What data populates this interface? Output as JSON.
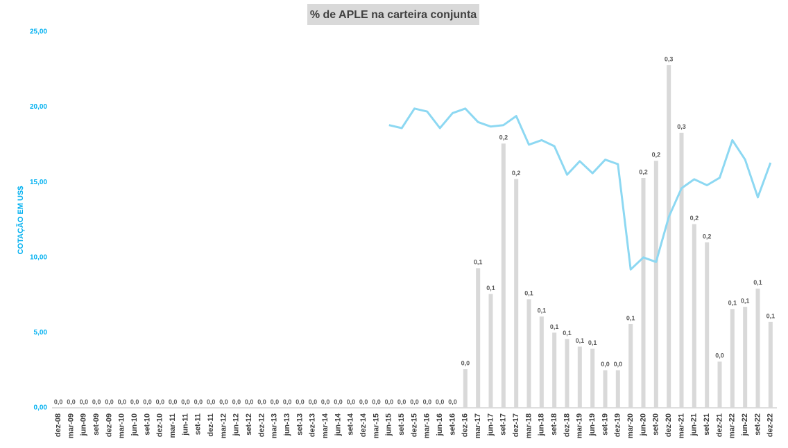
{
  "chart_data": {
    "type": "combo",
    "title": "% de APLE na carteira conjunta",
    "y_axis_label": "COTAÇÃO EM US$",
    "categories": [
      "dez-08",
      "mar-09",
      "jun-09",
      "set-09",
      "dez-09",
      "mar-10",
      "jun-10",
      "set-10",
      "dez-10",
      "mar-11",
      "jun-11",
      "set-11",
      "dez-11",
      "mar-12",
      "jun-12",
      "set-12",
      "dez-12",
      "mar-13",
      "jun-13",
      "set-13",
      "dez-13",
      "mar-14",
      "jun-14",
      "set-14",
      "dez-14",
      "mar-15",
      "jun-15",
      "set-15",
      "dez-15",
      "mar-16",
      "jun-16",
      "set-16",
      "dez-16",
      "mar-17",
      "jun-17",
      "set-17",
      "dez-17",
      "mar-18",
      "jun-18",
      "set-18",
      "dez-18",
      "mar-19",
      "jun-19",
      "set-19",
      "dez-19",
      "mar-20",
      "jun-20",
      "set-20",
      "dez-20",
      "mar-21",
      "jun-21",
      "set-21",
      "dez-21",
      "mar-22",
      "jun-22",
      "set-22",
      "dez-22"
    ],
    "ylim": [
      0,
      25
    ],
    "yticks": [
      {
        "value": 0,
        "label": "0,00"
      },
      {
        "value": 5,
        "label": "5,00"
      },
      {
        "value": 10,
        "label": "10,00"
      },
      {
        "value": 15,
        "label": "15,00"
      },
      {
        "value": 20,
        "label": "20,00"
      },
      {
        "value": 25,
        "label": "25,00"
      }
    ],
    "y2lim": [
      0,
      0.35
    ],
    "grid": false,
    "series": [
      {
        "type": "bar",
        "axis": "y2",
        "color": "#d9d9d9",
        "values": [
          0,
          0,
          0,
          0,
          0,
          0,
          0,
          0,
          0,
          0,
          0,
          0,
          0,
          0,
          0,
          0,
          0,
          0,
          0,
          0,
          0,
          0,
          0,
          0,
          0,
          0,
          0,
          0,
          0,
          0,
          0,
          0,
          0.036,
          0.13,
          0.106,
          0.246,
          0.213,
          0.101,
          0.085,
          0.07,
          0.064,
          0.057,
          0.055,
          0.035,
          0.035,
          0.078,
          0.214,
          0.23,
          0.319,
          0.256,
          0.171,
          0.154,
          0.043,
          0.092,
          0.094,
          0.111,
          0.08
        ],
        "value_labels": [
          "0,0",
          "0,0",
          "0,0",
          "0,0",
          "0,0",
          "0,0",
          "0,0",
          "0,0",
          "0,0",
          "0,0",
          "0,0",
          "0,0",
          "0,0",
          "0,0",
          "0,0",
          "0,0",
          "0,0",
          "0,0",
          "0,0",
          "0,0",
          "0,0",
          "0,0",
          "0,0",
          "0,0",
          "0,0",
          "0,0",
          "0,0",
          "0,0",
          "0,0",
          "0,0",
          "0,0",
          "0,0",
          "0,0",
          "0,1",
          "0,1",
          "0,2",
          "0,2",
          "0,1",
          "0,1",
          "0,1",
          "0,1",
          "0,1",
          "0,1",
          "0,0",
          "0,0",
          "0,1",
          "0,2",
          "0,2",
          "0,3",
          "0,3",
          "0,2",
          "0,2",
          "0,0",
          "0,1",
          "0,1",
          "0,1",
          "0,1"
        ]
      },
      {
        "type": "line",
        "color": "#8dd8f2",
        "values": [
          null,
          null,
          null,
          null,
          null,
          null,
          null,
          null,
          null,
          null,
          null,
          null,
          null,
          null,
          null,
          null,
          null,
          null,
          null,
          null,
          null,
          null,
          null,
          null,
          null,
          null,
          18.8,
          18.6,
          19.9,
          19.7,
          18.6,
          19.6,
          19.9,
          19.0,
          18.7,
          18.8,
          19.4,
          17.5,
          17.8,
          17.4,
          15.5,
          16.4,
          15.6,
          16.5,
          16.2,
          9.2,
          10.0,
          9.7,
          12.7,
          14.6,
          15.2,
          14.8,
          15.3,
          17.8,
          16.5,
          14.0,
          16.3
        ]
      }
    ]
  }
}
